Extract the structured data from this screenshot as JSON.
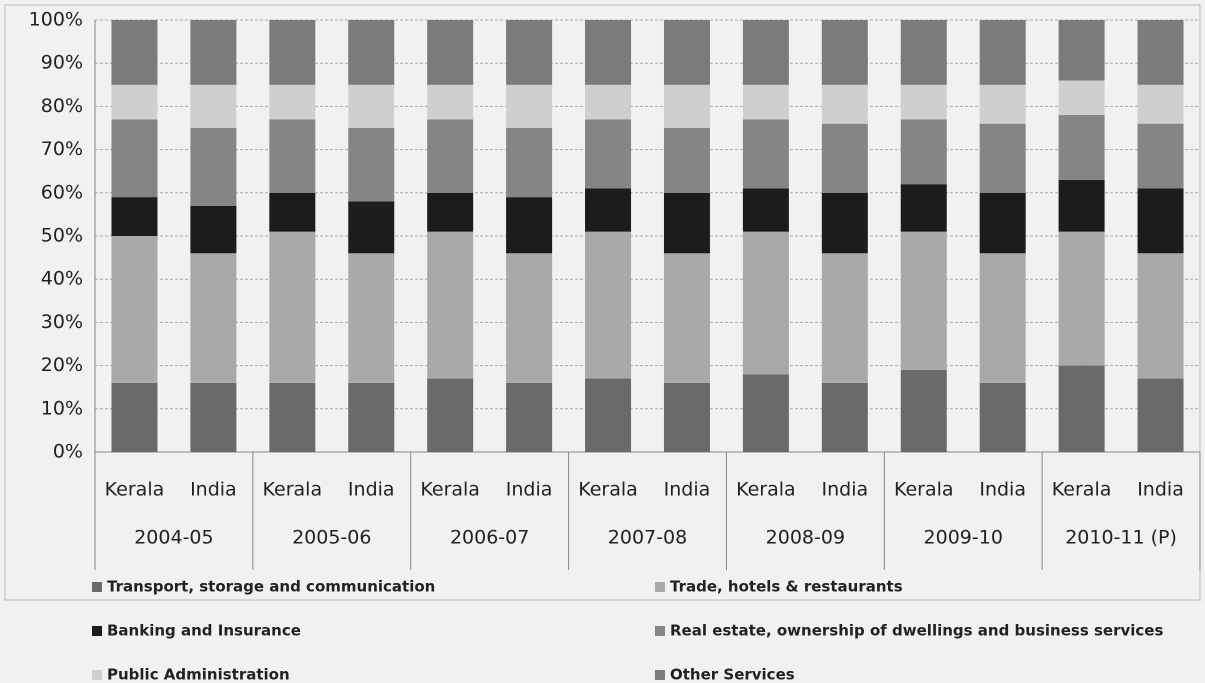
{
  "chart_data": {
    "type": "stacked-bar",
    "categories": [
      "Kerala",
      "India",
      "Kerala",
      "India",
      "Kerala",
      "India",
      "Kerala",
      "India",
      "Kerala",
      "India",
      "Kerala",
      "India",
      "Kerala",
      "India"
    ],
    "groups": [
      "2004-05",
      "2005-06",
      "2006-07",
      "2007-08",
      "2008-09",
      "2009-10",
      "2010-11 (P)"
    ],
    "series": [
      {
        "name": "Transport, storage and communication",
        "color": "#6a6a6a",
        "values": [
          16,
          16,
          16,
          16,
          17,
          16,
          17,
          16,
          18,
          16,
          19,
          16,
          20,
          17
        ]
      },
      {
        "name": "Trade, hotels & restaurants",
        "color": "#a9a9a9",
        "values": [
          34,
          30,
          35,
          30,
          34,
          30,
          34,
          30,
          33,
          30,
          32,
          30,
          31,
          29
        ]
      },
      {
        "name": "Banking and Insurance",
        "color": "#1c1c1c",
        "values": [
          9,
          11,
          9,
          12,
          9,
          13,
          10,
          14,
          10,
          14,
          11,
          14,
          12,
          15
        ]
      },
      {
        "name": "Real estate, ownership of dwellings and business services",
        "color": "#858585",
        "values": [
          18,
          18,
          17,
          17,
          17,
          16,
          16,
          15,
          16,
          16,
          15,
          16,
          15,
          15
        ]
      },
      {
        "name": "Public Administration",
        "color": "#cfcfcf",
        "values": [
          8,
          10,
          8,
          10,
          8,
          10,
          8,
          10,
          8,
          9,
          8,
          9,
          8,
          9
        ]
      },
      {
        "name": "Other Services",
        "color": "#7b7b7b",
        "values": [
          15,
          15,
          15,
          15,
          15,
          15,
          15,
          15,
          15,
          15,
          15,
          15,
          14,
          15
        ]
      }
    ],
    "ylim": [
      0,
      100
    ],
    "yticks": [
      {
        "value": 0,
        "label": "0%"
      },
      {
        "value": 10,
        "label": "10%"
      },
      {
        "value": 20,
        "label": "20%"
      },
      {
        "value": 30,
        "label": "30%"
      },
      {
        "value": 40,
        "label": "40%"
      },
      {
        "value": 50,
        "label": "50%"
      },
      {
        "value": 60,
        "label": "60%"
      },
      {
        "value": 70,
        "label": "70%"
      },
      {
        "value": 80,
        "label": "80%"
      },
      {
        "value": 90,
        "label": "90%"
      },
      {
        "value": 100,
        "label": "100%"
      }
    ],
    "grid": true
  }
}
